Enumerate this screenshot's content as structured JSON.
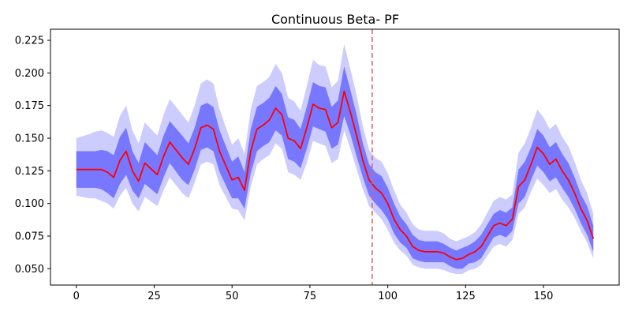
{
  "chart_data": {
    "type": "line",
    "title": "Continuous Beta- PF",
    "xlabel": "",
    "ylabel": "",
    "xlim": [
      -8.3,
      174.3
    ],
    "ylim": [
      0.0375,
      0.2335
    ],
    "x_ticks": [
      0,
      25,
      50,
      75,
      100,
      125,
      150
    ],
    "y_ticks": [
      0.05,
      0.075,
      0.1,
      0.125,
      0.15,
      0.175,
      0.2,
      0.225
    ],
    "y_tick_labels": [
      "0.050",
      "0.075",
      "0.100",
      "0.125",
      "0.150",
      "0.175",
      "0.200",
      "0.225"
    ],
    "grid": false,
    "vline": {
      "x": 95,
      "color": "#e06666",
      "style": "dashed"
    },
    "series": [
      {
        "kind": "mean",
        "color": "#ff0000",
        "x": [
          0,
          4,
          6,
          8,
          10,
          12,
          14,
          16,
          18,
          20,
          22,
          26,
          28,
          30,
          34,
          36,
          38,
          40,
          42,
          44,
          46,
          50,
          52,
          54,
          56,
          58,
          60,
          62,
          64,
          66,
          68,
          70,
          72,
          74,
          76,
          78,
          80,
          82,
          84,
          86,
          88,
          90,
          92,
          94,
          96,
          98,
          100,
          102,
          104,
          106,
          108,
          110,
          112,
          116,
          118,
          120,
          122,
          124,
          126,
          128,
          130,
          132,
          134,
          136,
          138,
          140,
          142,
          144,
          146,
          148,
          150,
          152,
          154,
          156,
          158,
          160,
          162,
          164,
          166
        ],
        "y": [
          0.126,
          0.126,
          0.126,
          0.126,
          0.124,
          0.12,
          0.133,
          0.14,
          0.125,
          0.117,
          0.131,
          0.122,
          0.136,
          0.147,
          0.135,
          0.13,
          0.142,
          0.158,
          0.16,
          0.157,
          0.14,
          0.118,
          0.12,
          0.11,
          0.14,
          0.157,
          0.16,
          0.164,
          0.173,
          0.168,
          0.15,
          0.148,
          0.142,
          0.158,
          0.176,
          0.173,
          0.172,
          0.158,
          0.162,
          0.186,
          0.17,
          0.152,
          0.133,
          0.118,
          0.112,
          0.108,
          0.1,
          0.088,
          0.08,
          0.075,
          0.067,
          0.064,
          0.063,
          0.063,
          0.062,
          0.059,
          0.057,
          0.058,
          0.061,
          0.063,
          0.067,
          0.075,
          0.083,
          0.085,
          0.083,
          0.088,
          0.113,
          0.118,
          0.13,
          0.143,
          0.138,
          0.13,
          0.134,
          0.125,
          0.118,
          0.108,
          0.096,
          0.087,
          0.073
        ]
      },
      {
        "kind": "inner-band",
        "color": "#7777ff",
        "x": [
          0,
          4,
          6,
          8,
          10,
          12,
          14,
          16,
          18,
          20,
          22,
          26,
          28,
          30,
          34,
          36,
          38,
          40,
          42,
          44,
          46,
          50,
          52,
          54,
          56,
          58,
          60,
          62,
          64,
          66,
          68,
          70,
          72,
          74,
          76,
          78,
          80,
          82,
          84,
          86,
          88,
          90,
          92,
          94,
          96,
          98,
          100,
          102,
          104,
          106,
          108,
          110,
          112,
          116,
          118,
          120,
          122,
          124,
          126,
          128,
          130,
          132,
          134,
          136,
          138,
          140,
          142,
          144,
          146,
          148,
          150,
          152,
          154,
          156,
          158,
          160,
          162,
          164,
          166
        ],
        "lower": [
          0.112,
          0.112,
          0.112,
          0.111,
          0.108,
          0.104,
          0.115,
          0.122,
          0.11,
          0.104,
          0.115,
          0.107,
          0.12,
          0.131,
          0.118,
          0.114,
          0.126,
          0.141,
          0.143,
          0.14,
          0.124,
          0.104,
          0.104,
          0.096,
          0.123,
          0.14,
          0.144,
          0.147,
          0.156,
          0.152,
          0.134,
          0.132,
          0.127,
          0.142,
          0.159,
          0.157,
          0.155,
          0.142,
          0.145,
          0.167,
          0.153,
          0.136,
          0.12,
          0.106,
          0.1,
          0.095,
          0.088,
          0.077,
          0.07,
          0.066,
          0.058,
          0.056,
          0.055,
          0.055,
          0.055,
          0.052,
          0.05,
          0.05,
          0.054,
          0.055,
          0.058,
          0.066,
          0.074,
          0.076,
          0.074,
          0.079,
          0.1,
          0.105,
          0.118,
          0.129,
          0.124,
          0.117,
          0.12,
          0.112,
          0.105,
          0.096,
          0.085,
          0.076,
          0.063
        ],
        "upper": [
          0.14,
          0.14,
          0.14,
          0.141,
          0.14,
          0.137,
          0.151,
          0.158,
          0.14,
          0.131,
          0.147,
          0.137,
          0.152,
          0.163,
          0.152,
          0.146,
          0.158,
          0.175,
          0.177,
          0.174,
          0.156,
          0.132,
          0.136,
          0.124,
          0.157,
          0.174,
          0.177,
          0.181,
          0.19,
          0.184,
          0.166,
          0.164,
          0.157,
          0.174,
          0.193,
          0.19,
          0.189,
          0.174,
          0.179,
          0.205,
          0.187,
          0.168,
          0.146,
          0.13,
          0.124,
          0.121,
          0.112,
          0.1,
          0.09,
          0.084,
          0.076,
          0.072,
          0.071,
          0.071,
          0.069,
          0.066,
          0.064,
          0.066,
          0.068,
          0.071,
          0.076,
          0.084,
          0.092,
          0.095,
          0.093,
          0.097,
          0.126,
          0.132,
          0.143,
          0.157,
          0.152,
          0.143,
          0.147,
          0.138,
          0.131,
          0.12,
          0.107,
          0.098,
          0.083
        ]
      },
      {
        "kind": "outer-band",
        "color": "#ccccff",
        "x": [
          0,
          4,
          6,
          8,
          10,
          12,
          14,
          16,
          18,
          20,
          22,
          26,
          28,
          30,
          34,
          36,
          38,
          40,
          42,
          44,
          46,
          50,
          52,
          54,
          56,
          58,
          60,
          62,
          64,
          66,
          68,
          70,
          72,
          74,
          76,
          78,
          80,
          82,
          84,
          86,
          88,
          90,
          92,
          94,
          96,
          98,
          100,
          102,
          104,
          106,
          108,
          110,
          112,
          116,
          118,
          120,
          122,
          124,
          126,
          128,
          130,
          132,
          134,
          136,
          138,
          140,
          142,
          144,
          146,
          148,
          150,
          152,
          154,
          156,
          158,
          160,
          162,
          164,
          166
        ],
        "lower": [
          0.106,
          0.104,
          0.104,
          0.102,
          0.1,
          0.096,
          0.106,
          0.112,
          0.1,
          0.094,
          0.105,
          0.098,
          0.11,
          0.12,
          0.108,
          0.104,
          0.116,
          0.13,
          0.132,
          0.13,
          0.114,
          0.096,
          0.095,
          0.087,
          0.113,
          0.13,
          0.134,
          0.137,
          0.146,
          0.142,
          0.124,
          0.122,
          0.118,
          0.131,
          0.148,
          0.146,
          0.144,
          0.131,
          0.134,
          0.156,
          0.142,
          0.126,
          0.111,
          0.098,
          0.093,
          0.088,
          0.08,
          0.07,
          0.064,
          0.06,
          0.053,
          0.051,
          0.05,
          0.05,
          0.049,
          0.047,
          0.046,
          0.046,
          0.049,
          0.05,
          0.053,
          0.06,
          0.067,
          0.069,
          0.067,
          0.072,
          0.092,
          0.097,
          0.109,
          0.119,
          0.114,
          0.108,
          0.111,
          0.103,
          0.097,
          0.089,
          0.079,
          0.07,
          0.058
        ],
        "upper": [
          0.15,
          0.153,
          0.155,
          0.156,
          0.154,
          0.151,
          0.167,
          0.175,
          0.156,
          0.146,
          0.162,
          0.152,
          0.168,
          0.18,
          0.168,
          0.162,
          0.175,
          0.192,
          0.195,
          0.192,
          0.172,
          0.145,
          0.15,
          0.138,
          0.172,
          0.19,
          0.193,
          0.197,
          0.207,
          0.2,
          0.181,
          0.178,
          0.171,
          0.19,
          0.21,
          0.206,
          0.205,
          0.189,
          0.194,
          0.222,
          0.203,
          0.183,
          0.159,
          0.141,
          0.135,
          0.132,
          0.123,
          0.11,
          0.099,
          0.093,
          0.084,
          0.08,
          0.079,
          0.079,
          0.077,
          0.073,
          0.071,
          0.073,
          0.075,
          0.078,
          0.084,
          0.093,
          0.102,
          0.105,
          0.103,
          0.107,
          0.139,
          0.146,
          0.158,
          0.172,
          0.166,
          0.157,
          0.161,
          0.151,
          0.144,
          0.132,
          0.118,
          0.108,
          0.092
        ]
      }
    ]
  }
}
